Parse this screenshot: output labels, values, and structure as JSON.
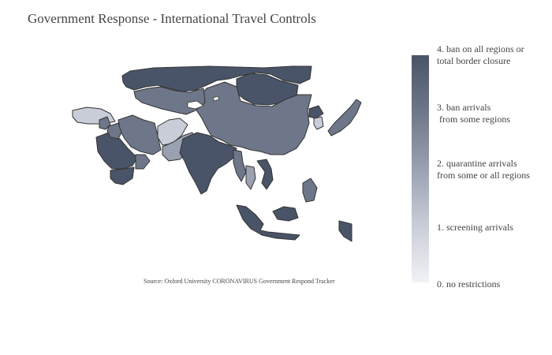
{
  "title": "Government Response - International Travel Controls",
  "source": "Source:  Oxford University CORONAVIRUS Government Respond Tracker",
  "colors": {
    "level0": "#f1f2f6",
    "level1": "#c9cdd7",
    "level2": "#9aa1b1",
    "level3": "#6e7789",
    "level4": "#4a5468",
    "border": "#333333"
  },
  "legend": {
    "levels": [
      {
        "value": 4,
        "label": "4. ban on all regions or\ntotal border closure"
      },
      {
        "value": 3,
        "label": "3. ban arrivals\n from some regions"
      },
      {
        "value": 2,
        "label": "2. quarantine arrivals\nfrom some or all regions"
      },
      {
        "value": 1,
        "label": "1. screening arrivals"
      },
      {
        "value": 0,
        "label": "0. no restrictions"
      }
    ]
  },
  "regions": [
    {
      "name": "Russia",
      "level": 4
    },
    {
      "name": "Mongolia",
      "level": 4
    },
    {
      "name": "China",
      "level": 3
    },
    {
      "name": "Kazakhstan",
      "level": 3
    },
    {
      "name": "Turkey",
      "level": 1
    },
    {
      "name": "Iran",
      "level": 3
    },
    {
      "name": "Afghanistan",
      "level": 1
    },
    {
      "name": "Pakistan",
      "level": 2
    },
    {
      "name": "India",
      "level": 4
    },
    {
      "name": "Saudi Arabia",
      "level": 4
    },
    {
      "name": "Yemen",
      "level": 4
    },
    {
      "name": "Oman",
      "level": 3
    },
    {
      "name": "Iraq",
      "level": 3
    },
    {
      "name": "Syria",
      "level": 3
    },
    {
      "name": "Myanmar",
      "level": 3
    },
    {
      "name": "Thailand",
      "level": 2
    },
    {
      "name": "Vietnam",
      "level": 4
    },
    {
      "name": "Japan",
      "level": 3
    },
    {
      "name": "South Korea",
      "level": 1
    },
    {
      "name": "North Korea",
      "level": 4
    },
    {
      "name": "Philippines",
      "level": 3
    },
    {
      "name": "Indonesia",
      "level": 4
    },
    {
      "name": "Malaysia",
      "level": 4
    },
    {
      "name": "Papua New Guinea",
      "level": 4
    }
  ]
}
